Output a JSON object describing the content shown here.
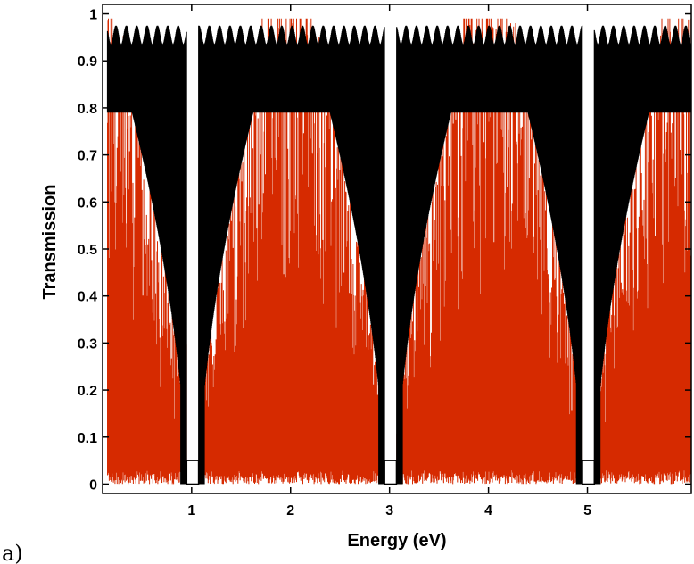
{
  "chart_data": {
    "type": "line",
    "title": "",
    "xlabel": "Energy (eV)",
    "ylabel": "Transmission",
    "panel_label": "a)",
    "xlim": [
      0.1,
      6.05
    ],
    "ylim": [
      -0.02,
      1.02
    ],
    "xticks": [
      1,
      2,
      3,
      4,
      5
    ],
    "yticks": [
      0,
      0.1,
      0.2,
      0.3,
      0.4,
      0.5,
      0.6,
      0.7,
      0.8,
      0.9,
      1
    ],
    "ytick_labels": [
      "0",
      "0.1",
      "0.2",
      "0.3",
      "0.4",
      "0.5",
      "0.6",
      "0.7",
      "0.8",
      "0.9",
      "1"
    ],
    "xtick_labels": [
      "1",
      "2",
      "3",
      "4",
      "5"
    ],
    "grid": false,
    "legend": "none",
    "series": [
      {
        "color": "#d62a00",
        "style": "dense oscillating fill",
        "note_points": [
          {
            "x": 0.2,
            "y_max": 0.98
          },
          {
            "x": 1.0,
            "y_max": 0.18
          },
          {
            "x": 1.05,
            "y_max": 0.0
          },
          {
            "x": 1.7,
            "y_max": 0.8
          },
          {
            "x": 2.0,
            "y_max": 0.99
          },
          {
            "x": 2.95,
            "y_max": 0.2
          },
          {
            "x": 3.05,
            "y_max": 0.0
          },
          {
            "x": 3.8,
            "y_max": 0.99
          },
          {
            "x": 4.95,
            "y_max": 0.2
          },
          {
            "x": 5.05,
            "y_max": 0.0
          },
          {
            "x": 5.9,
            "y_max": 0.98
          }
        ]
      },
      {
        "color": "#000000",
        "style": "dense oscillating fill",
        "envelope": {
          "upper_peak": 0.97,
          "lower_plateau": 0.79,
          "dips_at_x": [
            0.95,
            2.95,
            4.95
          ],
          "gaps_at_x": [
            [
              0.95,
              1.07
            ],
            [
              2.95,
              3.07
            ],
            [
              4.95,
              5.07
            ]
          ]
        }
      }
    ]
  },
  "colors": {
    "red_series": "#d62a00",
    "black_series": "#000000",
    "axis": "#000000",
    "background": "#ffffff"
  }
}
